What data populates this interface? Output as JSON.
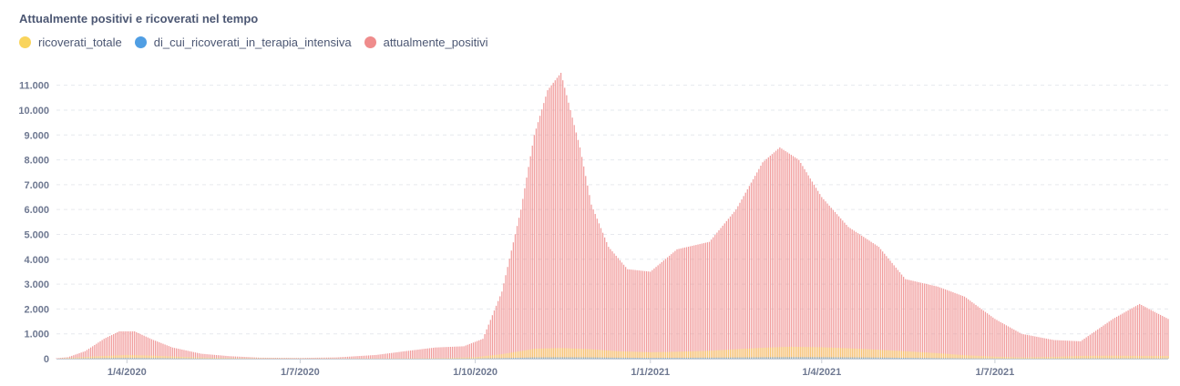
{
  "chart_data": {
    "type": "bar",
    "title": "Attualmente positivi e ricoverati nel tempo",
    "series": [
      {
        "name": "ricoverati_totale",
        "color": "#f9d45c",
        "x": [
          "2020-02-24",
          "2020-03-15",
          "2020-04-01",
          "2020-04-15",
          "2020-05-01",
          "2020-05-15",
          "2020-06-01",
          "2020-07-01",
          "2020-08-01",
          "2020-09-01",
          "2020-09-15",
          "2020-10-01",
          "2020-10-15",
          "2020-11-01",
          "2020-11-15",
          "2020-12-01",
          "2020-12-15",
          "2021-01-01",
          "2021-01-15",
          "2021-02-01",
          "2021-02-15",
          "2021-03-01",
          "2021-03-15",
          "2021-04-01",
          "2021-04-15",
          "2021-05-01",
          "2021-05-15",
          "2021-06-01",
          "2021-06-15",
          "2021-07-01",
          "2021-07-15",
          "2021-08-01",
          "2021-08-15",
          "2021-09-01",
          "2021-09-15"
        ],
        "values": [
          0,
          90,
          150,
          120,
          70,
          40,
          20,
          10,
          8,
          15,
          25,
          60,
          180,
          400,
          430,
          380,
          300,
          260,
          280,
          320,
          380,
          440,
          480,
          460,
          420,
          360,
          300,
          220,
          140,
          80,
          50,
          70,
          110,
          120,
          110
        ]
      },
      {
        "name": "di_cui_ricoverati_in_terapia_intensiva",
        "color": "#509ee3",
        "x": [
          "2020-02-24",
          "2020-03-15",
          "2020-04-01",
          "2020-04-15",
          "2020-05-01",
          "2020-05-15",
          "2020-06-01",
          "2020-07-01",
          "2020-08-01",
          "2020-09-01",
          "2020-09-15",
          "2020-10-01",
          "2020-10-15",
          "2020-11-01",
          "2020-11-15",
          "2020-12-01",
          "2020-12-15",
          "2021-01-01",
          "2021-01-15",
          "2021-02-01",
          "2021-02-15",
          "2021-03-01",
          "2021-03-15",
          "2021-04-01",
          "2021-04-15",
          "2021-05-01",
          "2021-05-15",
          "2021-06-01",
          "2021-06-15",
          "2021-07-01",
          "2021-07-15",
          "2021-08-01",
          "2021-08-15",
          "2021-09-01",
          "2021-09-15"
        ],
        "values": [
          0,
          20,
          30,
          25,
          15,
          8,
          4,
          2,
          1,
          2,
          4,
          8,
          25,
          50,
          55,
          50,
          40,
          35,
          38,
          42,
          48,
          55,
          60,
          58,
          52,
          45,
          35,
          25,
          15,
          8,
          5,
          7,
          12,
          14,
          12
        ]
      },
      {
        "name": "attualmente_positivi",
        "color": "#ef8c8c",
        "x": [
          "2020-02-24",
          "2020-03-01",
          "2020-03-10",
          "2020-03-20",
          "2020-03-28",
          "2020-04-05",
          "2020-04-15",
          "2020-04-25",
          "2020-05-10",
          "2020-05-25",
          "2020-06-10",
          "2020-07-01",
          "2020-07-20",
          "2020-08-10",
          "2020-08-25",
          "2020-09-10",
          "2020-09-25",
          "2020-10-05",
          "2020-10-15",
          "2020-10-25",
          "2020-11-01",
          "2020-11-08",
          "2020-11-15",
          "2020-11-20",
          "2020-11-25",
          "2020-12-01",
          "2020-12-10",
          "2020-12-20",
          "2021-01-01",
          "2021-01-15",
          "2021-02-01",
          "2021-02-15",
          "2021-03-01",
          "2021-03-10",
          "2021-03-20",
          "2021-04-01",
          "2021-04-15",
          "2021-05-01",
          "2021-05-15",
          "2021-06-01",
          "2021-06-15",
          "2021-07-01",
          "2021-07-15",
          "2021-08-01",
          "2021-08-15",
          "2021-09-01",
          "2021-09-15",
          "2021-09-30"
        ],
        "values": [
          20,
          60,
          300,
          800,
          1100,
          1100,
          750,
          450,
          200,
          100,
          40,
          30,
          50,
          150,
          300,
          450,
          500,
          800,
          2700,
          6000,
          9000,
          10800,
          11500,
          10000,
          8500,
          6200,
          4500,
          3600,
          3500,
          4400,
          4700,
          6000,
          7900,
          8500,
          8000,
          6500,
          5300,
          4500,
          3200,
          2900,
          2500,
          1600,
          1000,
          750,
          700,
          1600,
          2200,
          1600
        ]
      }
    ],
    "x_ticks": [
      "1/4/2020",
      "1/7/2020",
      "1/10/2020",
      "1/1/2021",
      "1/4/2021",
      "1/7/2021"
    ],
    "y_ticks": [
      "0",
      "1.000",
      "2.000",
      "3.000",
      "4.000",
      "5.000",
      "6.000",
      "7.000",
      "8.000",
      "9.000",
      "10.000",
      "11.000"
    ],
    "xlim": [
      "2020-02-24",
      "2021-09-30"
    ],
    "ylim": [
      0,
      11500
    ],
    "grid": true,
    "legend_position": "top-left"
  }
}
